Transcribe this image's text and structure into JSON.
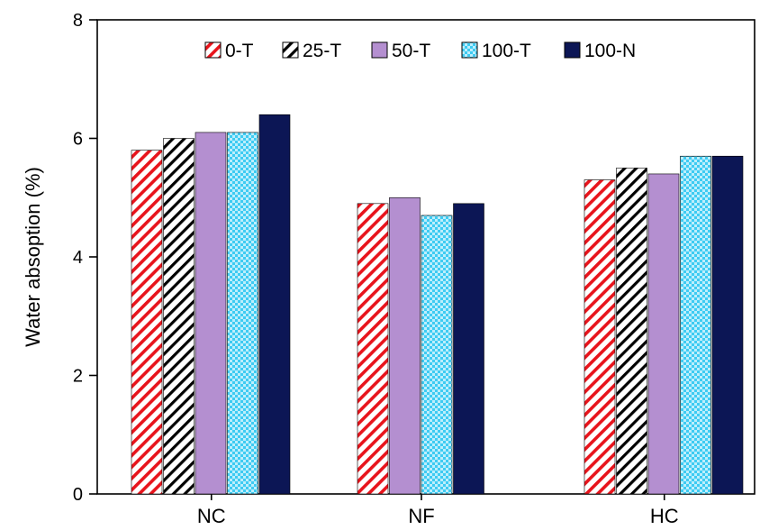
{
  "chart_data": {
    "type": "bar",
    "title": "",
    "xlabel": "",
    "ylabel": "Water absoption (%)",
    "ylim": [
      0,
      8
    ],
    "yticks": [
      0,
      2,
      4,
      6,
      8
    ],
    "grid": false,
    "legend_position": "top",
    "groups": [
      {
        "category": "NC",
        "bars": [
          {
            "series": "0-T",
            "value": 5.8
          },
          {
            "series": "25-T",
            "value": 6.0
          },
          {
            "series": "50-T",
            "value": 6.1
          },
          {
            "series": "100-T",
            "value": 6.1
          },
          {
            "series": "100-N",
            "value": 6.4
          }
        ]
      },
      {
        "category": "NF",
        "bars": [
          {
            "series": "0-T",
            "value": 4.9
          },
          {
            "series": "50-T",
            "value": 5.0
          },
          {
            "series": "100-T",
            "value": 4.7
          },
          {
            "series": "100-N",
            "value": 4.9
          }
        ]
      },
      {
        "category": "HC",
        "bars": [
          {
            "series": "0-T",
            "value": 5.3
          },
          {
            "series": "25-T",
            "value": 5.5
          },
          {
            "series": "50-T",
            "value": 5.4
          },
          {
            "series": "100-T",
            "value": 5.7
          },
          {
            "series": "100-N",
            "value": 5.7
          }
        ]
      }
    ],
    "series": [
      {
        "name": "0-T",
        "pattern": "red-hatch",
        "color": "#e8141c"
      },
      {
        "name": "25-T",
        "pattern": "black-hatch",
        "color": "#000000"
      },
      {
        "name": "50-T",
        "pattern": "solid",
        "color": "#b48fd0"
      },
      {
        "name": "100-T",
        "pattern": "cyan-checker",
        "color": "#3ecbf2"
      },
      {
        "name": "100-N",
        "pattern": "solid",
        "color": "#0c1655"
      }
    ]
  }
}
